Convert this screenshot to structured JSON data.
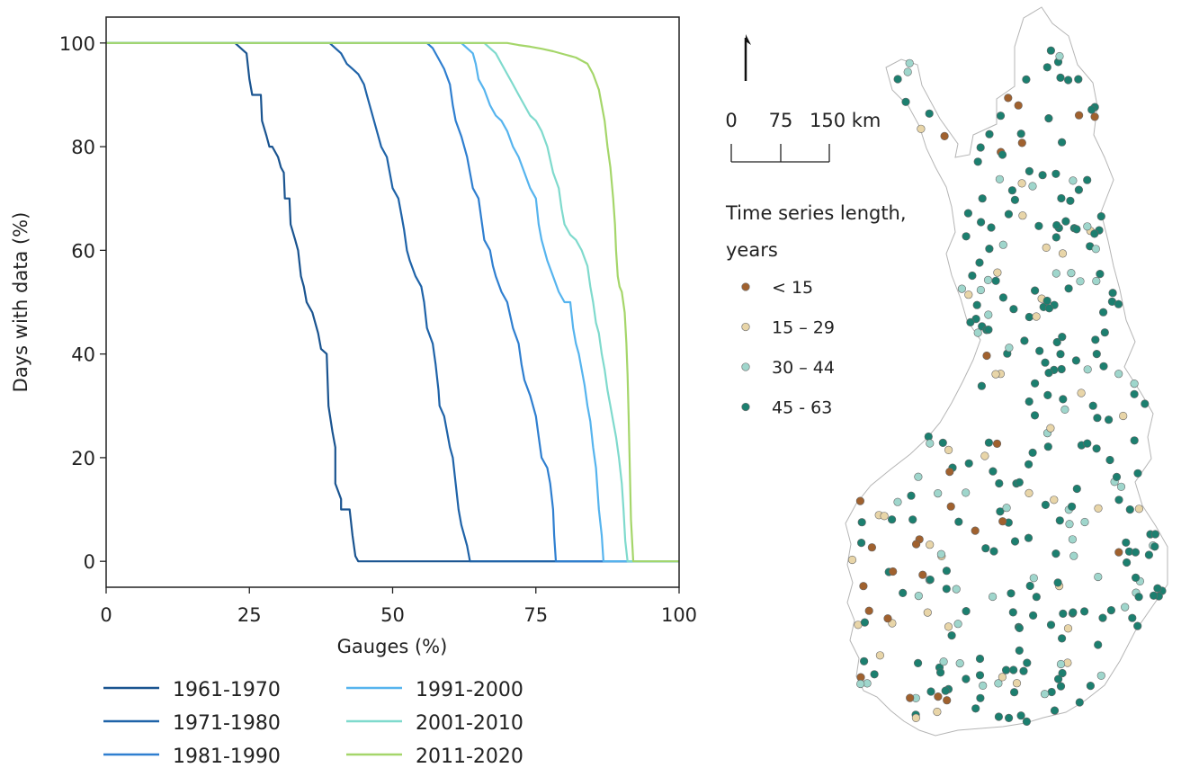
{
  "chart_data": [
    {
      "type": "line",
      "xlabel": "Gauges (%)",
      "ylabel": "Days with data (%)",
      "xlim": [
        0,
        100
      ],
      "ylim": [
        -5,
        105
      ],
      "xticks": [
        0,
        25,
        50,
        75,
        100
      ],
      "yticks": [
        0,
        20,
        40,
        60,
        80,
        100
      ],
      "grid": false,
      "legend_position": "bottom",
      "series": [
        {
          "name": "1961-1970",
          "color": "#1a5490",
          "points": [
            [
              0,
              100
            ],
            [
              22.5,
              100
            ],
            [
              23.5,
              99
            ],
            [
              24.5,
              98
            ],
            [
              24.8,
              95
            ],
            [
              25,
              93
            ],
            [
              25.5,
              90
            ],
            [
              27,
              90
            ],
            [
              27.2,
              85
            ],
            [
              28,
              82
            ],
            [
              28.5,
              80
            ],
            [
              29,
              80
            ],
            [
              30,
              78
            ],
            [
              30.5,
              76
            ],
            [
              31,
              75
            ],
            [
              31.2,
              70
            ],
            [
              32,
              70
            ],
            [
              32.2,
              65
            ],
            [
              33,
              62
            ],
            [
              33.5,
              60
            ],
            [
              34,
              55
            ],
            [
              34.5,
              53
            ],
            [
              35,
              50
            ],
            [
              35.5,
              49
            ],
            [
              36,
              48
            ],
            [
              36.5,
              46
            ],
            [
              37,
              44
            ],
            [
              37.5,
              41
            ],
            [
              38.5,
              40
            ],
            [
              38.8,
              30
            ],
            [
              39.5,
              25
            ],
            [
              40,
              22
            ],
            [
              40,
              15
            ],
            [
              41,
              12
            ],
            [
              41,
              10
            ],
            [
              42.5,
              10
            ],
            [
              43,
              5
            ],
            [
              43.5,
              1
            ],
            [
              44,
              0
            ],
            [
              100,
              0
            ]
          ]
        },
        {
          "name": "1971-1980",
          "color": "#1f63a8",
          "points": [
            [
              0,
              100
            ],
            [
              39,
              100
            ],
            [
              40,
              99
            ],
            [
              41,
              98
            ],
            [
              42,
              96
            ],
            [
              43,
              95
            ],
            [
              44,
              94
            ],
            [
              45,
              92
            ],
            [
              45.5,
              90
            ],
            [
              46,
              88
            ],
            [
              46.5,
              86
            ],
            [
              47,
              84
            ],
            [
              48,
              80
            ],
            [
              49,
              78
            ],
            [
              49.5,
              75
            ],
            [
              50,
              72
            ],
            [
              51,
              70
            ],
            [
              51.5,
              67
            ],
            [
              52,
              64
            ],
            [
              52.5,
              60
            ],
            [
              53,
              58
            ],
            [
              54,
              55
            ],
            [
              55,
              53
            ],
            [
              55.5,
              50
            ],
            [
              56,
              45
            ],
            [
              57,
              42
            ],
            [
              57.5,
              38
            ],
            [
              58,
              33
            ],
            [
              58.2,
              30
            ],
            [
              59,
              28
            ],
            [
              59.5,
              25
            ],
            [
              60,
              22
            ],
            [
              60.5,
              20
            ],
            [
              61,
              15
            ],
            [
              61.5,
              10
            ],
            [
              62,
              7
            ],
            [
              63,
              3
            ],
            [
              63.5,
              0
            ],
            [
              100,
              0
            ]
          ]
        },
        {
          "name": "1981-1990",
          "color": "#2f7fd0",
          "points": [
            [
              0,
              100
            ],
            [
              56,
              100
            ],
            [
              57,
              99
            ],
            [
              58,
              97
            ],
            [
              59,
              95
            ],
            [
              60,
              92
            ],
            [
              60.5,
              88
            ],
            [
              61,
              85
            ],
            [
              62,
              82
            ],
            [
              63,
              78
            ],
            [
              63.5,
              75
            ],
            [
              64,
              72
            ],
            [
              65,
              70
            ],
            [
              65.5,
              66
            ],
            [
              66,
              62
            ],
            [
              67,
              60
            ],
            [
              67.5,
              57
            ],
            [
              68,
              55
            ],
            [
              69,
              52
            ],
            [
              70,
              50
            ],
            [
              71,
              45
            ],
            [
              72,
              42
            ],
            [
              72.5,
              38
            ],
            [
              73,
              35
            ],
            [
              74,
              32
            ],
            [
              75,
              28
            ],
            [
              75.5,
              24
            ],
            [
              76,
              20
            ],
            [
              77,
              18
            ],
            [
              77.5,
              15
            ],
            [
              78,
              10
            ],
            [
              78.2,
              5
            ],
            [
              78.5,
              0
            ],
            [
              100,
              0
            ]
          ]
        },
        {
          "name": "1991-2000",
          "color": "#56b4ee",
          "points": [
            [
              0,
              100
            ],
            [
              62,
              100
            ],
            [
              63,
              99
            ],
            [
              64,
              98
            ],
            [
              64.5,
              96
            ],
            [
              65,
              93
            ],
            [
              66,
              91
            ],
            [
              67,
              88
            ],
            [
              68,
              86
            ],
            [
              69,
              85
            ],
            [
              70,
              83
            ],
            [
              71,
              80
            ],
            [
              72,
              78
            ],
            [
              73,
              75
            ],
            [
              74,
              72
            ],
            [
              75,
              70
            ],
            [
              75.5,
              65
            ],
            [
              76,
              62
            ],
            [
              77,
              58
            ],
            [
              78,
              55
            ],
            [
              79,
              52
            ],
            [
              80,
              50
            ],
            [
              81,
              50
            ],
            [
              81.5,
              45
            ],
            [
              82,
              42
            ],
            [
              82.5,
              40
            ],
            [
              83,
              37
            ],
            [
              83.5,
              34
            ],
            [
              84,
              30
            ],
            [
              84.5,
              27
            ],
            [
              85,
              22
            ],
            [
              85.5,
              18
            ],
            [
              86,
              10
            ],
            [
              86.5,
              5
            ],
            [
              86.8,
              0
            ],
            [
              100,
              0
            ]
          ]
        },
        {
          "name": "2001-2010",
          "color": "#7fdacd",
          "points": [
            [
              0,
              100
            ],
            [
              66,
              100
            ],
            [
              67,
              99
            ],
            [
              68,
              98
            ],
            [
              69,
              96
            ],
            [
              70,
              94
            ],
            [
              71,
              92
            ],
            [
              72,
              90
            ],
            [
              73,
              88
            ],
            [
              74,
              86
            ],
            [
              75,
              85
            ],
            [
              76,
              83
            ],
            [
              77,
              80
            ],
            [
              78,
              75
            ],
            [
              79,
              72
            ],
            [
              79.5,
              68
            ],
            [
              80,
              65
            ],
            [
              81,
              63
            ],
            [
              82,
              62
            ],
            [
              82.5,
              61
            ],
            [
              83,
              60
            ],
            [
              84,
              57
            ],
            [
              84.5,
              53
            ],
            [
              85,
              50
            ],
            [
              85.5,
              46
            ],
            [
              86,
              44
            ],
            [
              86.5,
              40
            ],
            [
              87,
              37
            ],
            [
              87.5,
              33
            ],
            [
              88,
              30
            ],
            [
              88.5,
              27
            ],
            [
              89,
              24
            ],
            [
              89.5,
              20
            ],
            [
              90,
              15
            ],
            [
              90.3,
              10
            ],
            [
              90.6,
              4
            ],
            [
              91,
              0
            ],
            [
              100,
              0
            ]
          ]
        },
        {
          "name": "2011-2020",
          "color": "#a5d66a",
          "points": [
            [
              0,
              100
            ],
            [
              70,
              100
            ],
            [
              72,
              99.6
            ],
            [
              74,
              99.3
            ],
            [
              76,
              98.9
            ],
            [
              78,
              98.4
            ],
            [
              80,
              97.8
            ],
            [
              82,
              97.2
            ],
            [
              84,
              96
            ],
            [
              85,
              94
            ],
            [
              86,
              91
            ],
            [
              86.5,
              88
            ],
            [
              87,
              85
            ],
            [
              87.5,
              80
            ],
            [
              88,
              76
            ],
            [
              88.5,
              70
            ],
            [
              88.8,
              65
            ],
            [
              89,
              60
            ],
            [
              89.3,
              55
            ],
            [
              89.6,
              53
            ],
            [
              90,
              52
            ],
            [
              90.5,
              48
            ],
            [
              90.8,
              42
            ],
            [
              91,
              36
            ],
            [
              91.2,
              28
            ],
            [
              91.4,
              18
            ],
            [
              91.6,
              8
            ],
            [
              91.9,
              2
            ],
            [
              92,
              0
            ],
            [
              100,
              0
            ]
          ]
        }
      ]
    },
    {
      "type": "map",
      "scale_ticks": [
        "0",
        "75",
        "150 km"
      ],
      "legend_title_lines": [
        "Time series length,",
        "years"
      ],
      "legend": [
        {
          "label": "< 15",
          "color": "#a0612e"
        },
        {
          "label": "15 – 29",
          "color": "#e8d5a8"
        },
        {
          "label": "30 – 44",
          "color": "#9fd6cc"
        },
        {
          "label": "45 - 63",
          "color": "#1c7f6f"
        }
      ]
    }
  ]
}
